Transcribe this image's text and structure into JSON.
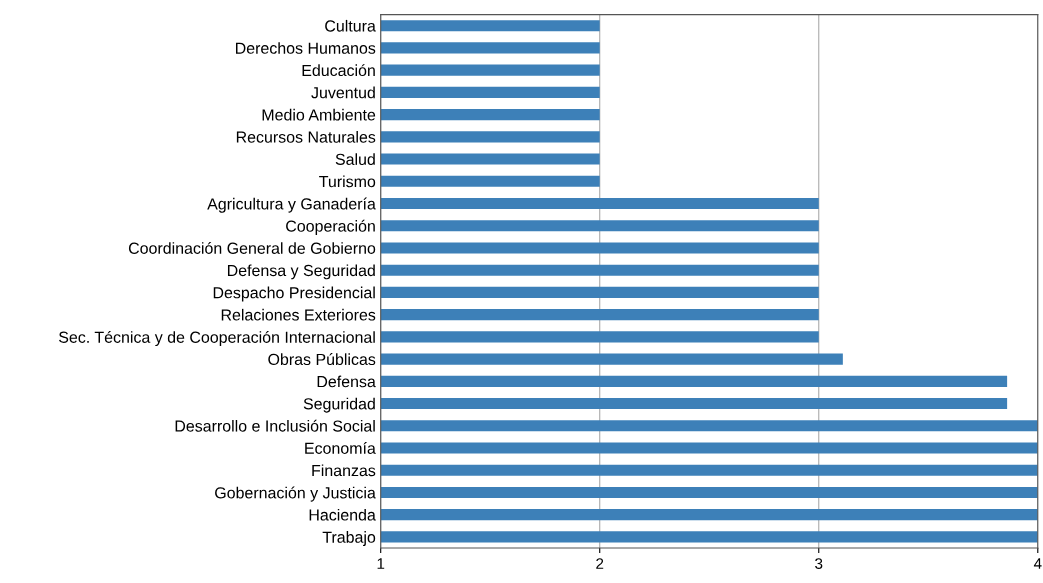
{
  "chart_data": {
    "type": "bar",
    "orientation": "horizontal",
    "categories": [
      "Cultura",
      "Derechos Humanos",
      "Educación",
      "Juventud",
      "Medio Ambiente",
      "Recursos Naturales",
      "Salud",
      "Turismo",
      "Agricultura y Ganadería",
      "Cooperación",
      "Coordinación General de Gobierno",
      "Defensa y Seguridad",
      "Despacho Presidencial",
      "Relaciones Exteriores",
      "Sec. Técnica y de Cooperación Internacional",
      "Obras Públicas",
      "Defensa",
      "Seguridad",
      "Desarrollo e Inclusión Social",
      "Economía",
      "Finanzas",
      "Gobernación y Justicia",
      "Hacienda",
      "Trabajo"
    ],
    "values": [
      2,
      2,
      2,
      2,
      2,
      2,
      2,
      2,
      3,
      3,
      3,
      3,
      3,
      3,
      3,
      3.11,
      3.86,
      3.86,
      4,
      4,
      4,
      4,
      4,
      4
    ],
    "color": "#3d80b8",
    "xlim": [
      1,
      4
    ],
    "xticks": [
      1,
      2,
      3,
      4
    ],
    "grid": "x"
  }
}
